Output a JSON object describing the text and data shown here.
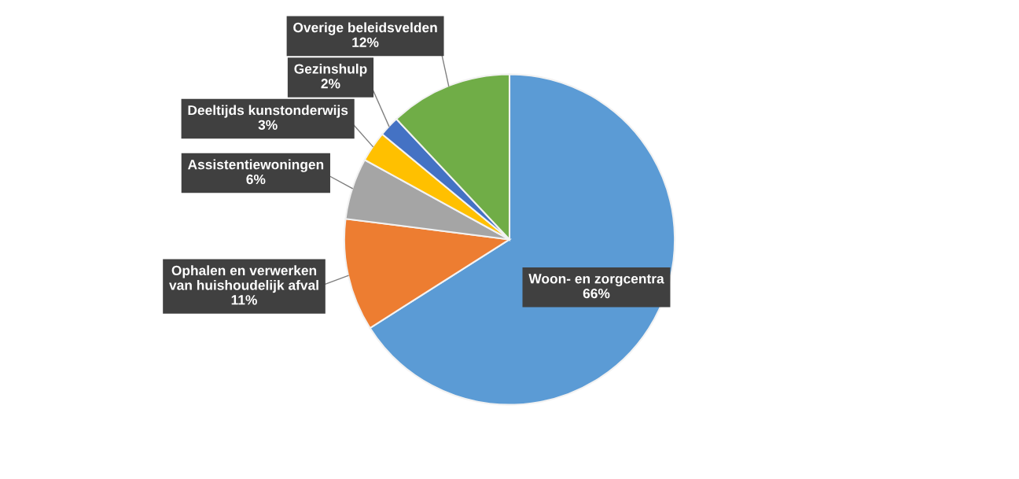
{
  "chart_data": {
    "type": "pie",
    "categories": [
      "Woon- en zorgcentra",
      "Ophalen en verwerken\nvan huishoudelijk afval",
      "Assistentiewoningen",
      "Deeltijds kunstonderwijs",
      "Gezinshulp",
      "Overige beleidsvelden"
    ],
    "values": [
      66,
      11,
      6,
      3,
      2,
      12
    ],
    "value_labels": [
      "66%",
      "11%",
      "6%",
      "3%",
      "2%",
      "12%"
    ],
    "colors": [
      "#5b9bd5",
      "#ed7d31",
      "#a5a5a5",
      "#ffc000",
      "#4472c4",
      "#70ad47"
    ],
    "legend": false
  }
}
